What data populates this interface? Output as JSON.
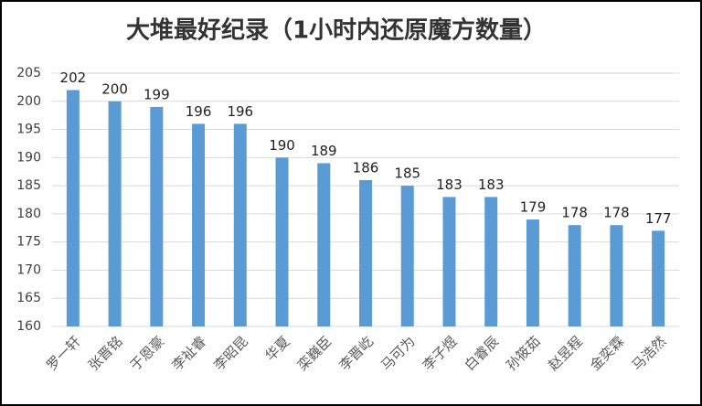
{
  "chart_data": {
    "type": "bar",
    "title": "大堆最好纪录（1小时内还原魔方数量）",
    "categories": [
      "罗一轩",
      "张晋铭",
      "于恩豪",
      "李祉睿",
      "李昭昆",
      "华夏",
      "栾巍臣",
      "李晋屹",
      "马可为",
      "李子煜",
      "白睿辰",
      "孙筱茹",
      "赵昱程",
      "金奕霖",
      "马浩然"
    ],
    "values": [
      202,
      200,
      199,
      196,
      196,
      190,
      189,
      186,
      185,
      183,
      183,
      179,
      178,
      178,
      177
    ],
    "color": "#5b9bd5",
    "ylim": [
      160,
      205
    ],
    "yticks": [
      160,
      165,
      170,
      175,
      180,
      185,
      190,
      195,
      200,
      205
    ],
    "grid": true
  }
}
